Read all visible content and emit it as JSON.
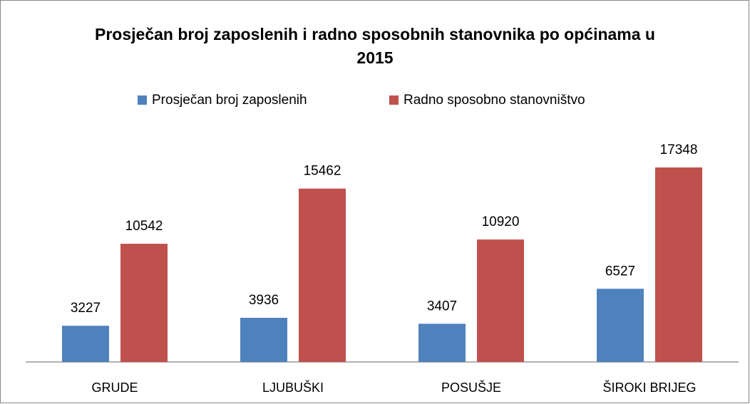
{
  "chart_data": {
    "type": "bar",
    "title": "Prosječan broj zaposlenih i radno sposobnih stanovnika po općinama u 2015",
    "categories": [
      "GRUDE",
      "LJUBUŠKI",
      "POSUŠJE",
      "ŠIROKI BRIJEG"
    ],
    "series": [
      {
        "name": "Prosječan broj zaposlenih",
        "color": "#4f81bd",
        "values": [
          3227,
          3936,
          3407,
          6527
        ]
      },
      {
        "name": "Radno sposobno stanovništvo",
        "color": "#c0504d",
        "values": [
          10542,
          15462,
          10920,
          17348
        ]
      }
    ],
    "legend": "top"
  }
}
